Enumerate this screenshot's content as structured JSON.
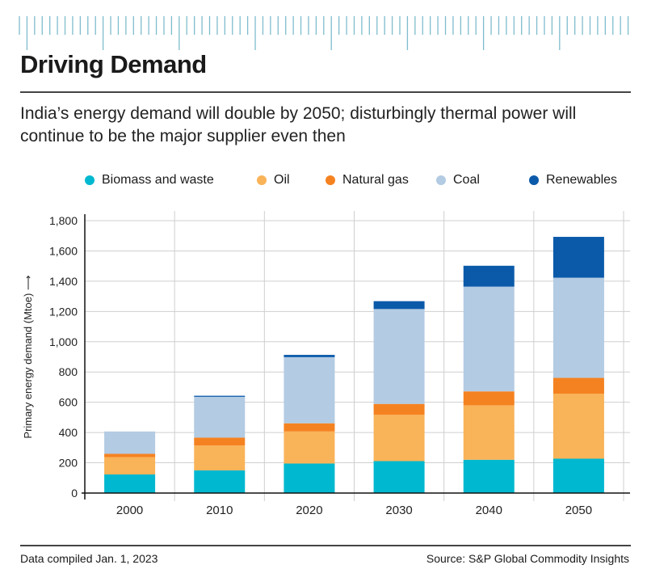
{
  "header": {
    "title": "Driving Demand",
    "subtitle": "India’s energy demand will double by 2050; disturbingly thermal power will continue to be the major supplier even then"
  },
  "footer": {
    "left": "Data compiled Jan. 1, 2023",
    "right": "Source: S&P Global Commodity Insights"
  },
  "colors": {
    "accent_ticks": "#7fbccd",
    "biomass": "#00b8cf",
    "oil": "#f9b358",
    "gas": "#f58220",
    "coal": "#b3cbe3",
    "renewables": "#0b5aaa"
  },
  "chart_data": {
    "type": "bar",
    "stacked": true,
    "categories": [
      "2000",
      "2010",
      "2020",
      "2030",
      "2040",
      "2050"
    ],
    "ylabel": "Primary energy demand (Mtoe) ⟶",
    "ylim": [
      0,
      1800
    ],
    "yticks": [
      "0",
      "200",
      "400",
      "600",
      "800",
      "1,000",
      "1,200",
      "1,400",
      "1,600",
      "1,800"
    ],
    "grid": true,
    "legend_position": "top",
    "series": [
      {
        "name": "Biomass and waste",
        "color": "#00b8cf",
        "values": [
          123,
          150,
          195,
          211,
          220,
          227
        ]
      },
      {
        "name": "Oil",
        "color": "#f9b358",
        "values": [
          114,
          164,
          212,
          307,
          360,
          430
        ]
      },
      {
        "name": "Natural gas",
        "color": "#f58220",
        "values": [
          22,
          52,
          54,
          71,
          92,
          104
        ]
      },
      {
        "name": "Coal",
        "color": "#b3cbe3",
        "values": [
          148,
          270,
          437,
          627,
          692,
          662
        ]
      },
      {
        "name": "Renewables",
        "color": "#0b5aaa",
        "values": [
          0,
          7,
          15,
          52,
          138,
          270
        ]
      }
    ]
  }
}
